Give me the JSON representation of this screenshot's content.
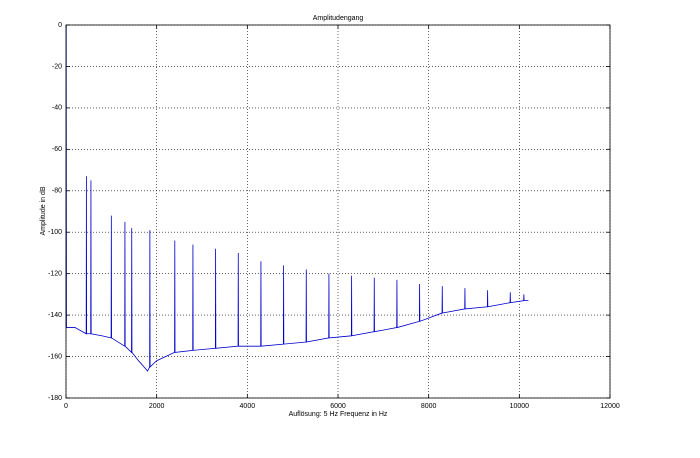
{
  "chart_data": {
    "type": "line",
    "title": "Amplitudengang",
    "xlabel": "Auflösung: 5 Hz Frequenz in Hz",
    "ylabel": "Amplitude in dB",
    "color": "#0000cc",
    "grid": true,
    "xlim": [
      0,
      12000
    ],
    "ylim": [
      -180,
      0
    ],
    "xticks": [
      0,
      2000,
      4000,
      6000,
      8000,
      10000,
      12000
    ],
    "yticks": [
      -180,
      -160,
      -140,
      -120,
      -100,
      -80,
      -60,
      -40,
      -20,
      0
    ],
    "x": [
      0,
      5,
      10,
      200,
      445,
      450,
      455,
      545,
      550,
      555,
      800,
      995,
      1000,
      1005,
      1295,
      1300,
      1305,
      1445,
      1450,
      1455,
      1600,
      1800,
      1845,
      1850,
      1855,
      2000,
      2395,
      2400,
      2405,
      2795,
      2800,
      2805,
      3295,
      3300,
      3305,
      3795,
      3800,
      3805,
      4295,
      4300,
      4305,
      4795,
      4800,
      4805,
      5295,
      5300,
      5305,
      5795,
      5800,
      5805,
      6295,
      6300,
      6305,
      6795,
      6800,
      6805,
      7295,
      7300,
      7305,
      7795,
      7800,
      7805,
      8295,
      8300,
      8305,
      8795,
      8800,
      8805,
      9295,
      9300,
      9305,
      9795,
      9800,
      9805,
      10095,
      10100,
      10105,
      10200
    ],
    "values": [
      -146,
      0,
      -146,
      -146,
      -149,
      -73,
      -149,
      -149,
      -75,
      -149,
      -150,
      -151,
      -92,
      -151,
      -155,
      -95,
      -155,
      -158,
      -98,
      -158,
      -162,
      -167,
      -165,
      -99,
      -165,
      -162,
      -158,
      -104,
      -158,
      -157,
      -106,
      -157,
      -156,
      -108,
      -156,
      -155,
      -110,
      -155,
      -155,
      -114,
      -155,
      -154,
      -116,
      -154,
      -153,
      -118,
      -153,
      -151,
      -120,
      -151,
      -150,
      -121,
      -150,
      -148,
      -122,
      -148,
      -146,
      -123,
      -146,
      -143,
      -125,
      -143,
      -139,
      -126,
      -139,
      -137,
      -127,
      -137,
      -136,
      -128,
      -136,
      -134,
      -129,
      -134,
      -133,
      -130,
      -133,
      -133
    ]
  }
}
